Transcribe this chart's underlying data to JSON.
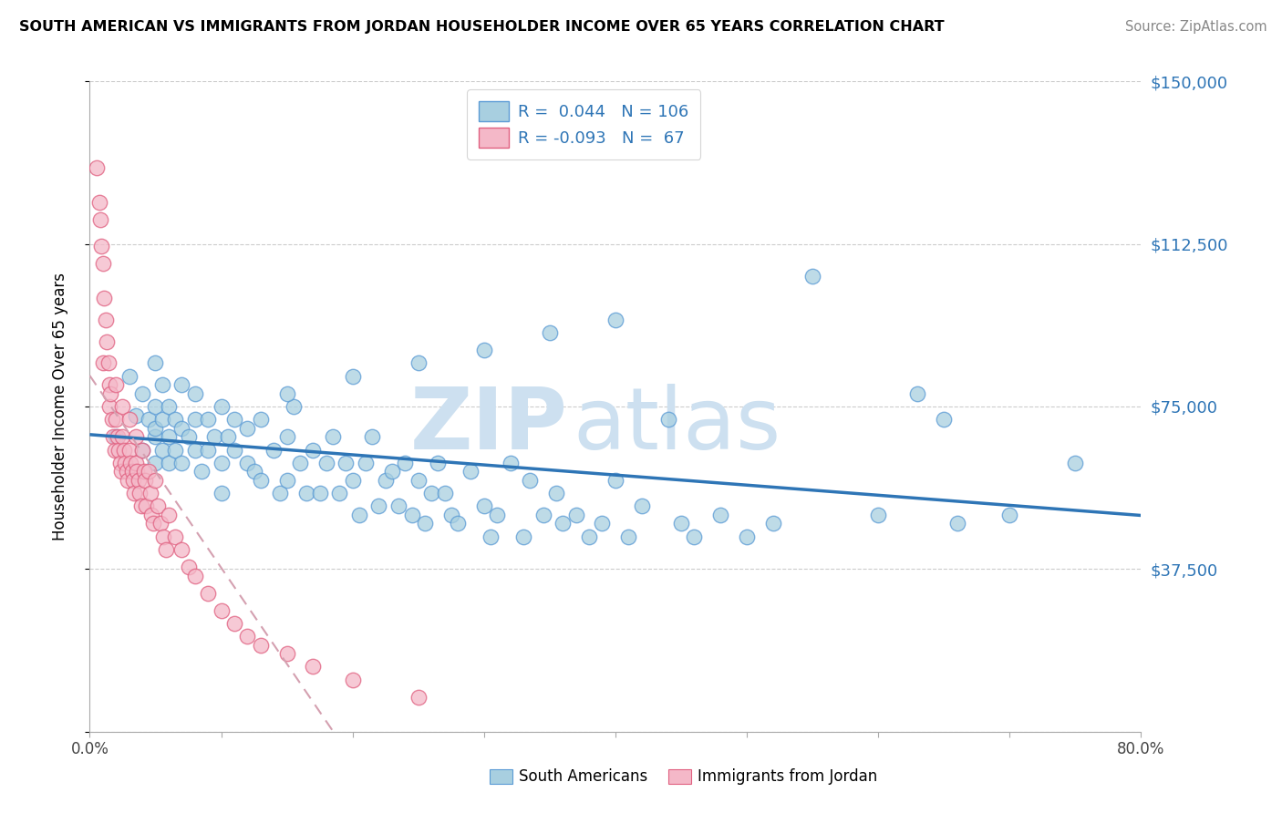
{
  "title": "SOUTH AMERICAN VS IMMIGRANTS FROM JORDAN HOUSEHOLDER INCOME OVER 65 YEARS CORRELATION CHART",
  "source": "Source: ZipAtlas.com",
  "ylabel": "Householder Income Over 65 years",
  "xlim": [
    0.0,
    0.8
  ],
  "ylim": [
    0,
    150000
  ],
  "yticks": [
    0,
    37500,
    75000,
    112500,
    150000
  ],
  "ytick_labels": [
    "",
    "$37,500",
    "$75,000",
    "$112,500",
    "$150,000"
  ],
  "xticks": [
    0.0,
    0.1,
    0.2,
    0.3,
    0.4,
    0.5,
    0.6,
    0.7,
    0.8
  ],
  "xtick_labels": [
    "0.0%",
    "",
    "",
    "",
    "",
    "",
    "",
    "",
    "80.0%"
  ],
  "blue_R": 0.044,
  "blue_N": 106,
  "pink_R": -0.093,
  "pink_N": 67,
  "blue_color": "#a8cfe0",
  "pink_color": "#f4b8c8",
  "blue_edge_color": "#5b9bd5",
  "pink_edge_color": "#e06080",
  "blue_line_color": "#2e75b6",
  "pink_line_color": "#d4a0b0",
  "watermark_color": "#cde0f0",
  "legend_label_blue": "South Americans",
  "legend_label_pink": "Immigrants from Jordan",
  "blue_scatter_x": [
    0.02,
    0.03,
    0.035,
    0.04,
    0.04,
    0.045,
    0.05,
    0.05,
    0.05,
    0.05,
    0.05,
    0.055,
    0.055,
    0.055,
    0.06,
    0.06,
    0.06,
    0.065,
    0.065,
    0.07,
    0.07,
    0.07,
    0.075,
    0.08,
    0.08,
    0.08,
    0.085,
    0.09,
    0.09,
    0.095,
    0.1,
    0.1,
    0.1,
    0.105,
    0.11,
    0.11,
    0.12,
    0.12,
    0.125,
    0.13,
    0.13,
    0.14,
    0.145,
    0.15,
    0.15,
    0.155,
    0.16,
    0.165,
    0.17,
    0.175,
    0.18,
    0.185,
    0.19,
    0.195,
    0.2,
    0.205,
    0.21,
    0.215,
    0.22,
    0.225,
    0.23,
    0.235,
    0.24,
    0.245,
    0.25,
    0.255,
    0.26,
    0.265,
    0.27,
    0.275,
    0.28,
    0.29,
    0.3,
    0.305,
    0.31,
    0.32,
    0.33,
    0.335,
    0.345,
    0.355,
    0.36,
    0.37,
    0.38,
    0.39,
    0.4,
    0.41,
    0.42,
    0.44,
    0.45,
    0.46,
    0.48,
    0.5,
    0.52,
    0.55,
    0.6,
    0.63,
    0.65,
    0.66,
    0.7,
    0.75,
    0.4,
    0.35,
    0.3,
    0.25,
    0.2,
    0.15
  ],
  "blue_scatter_y": [
    68000,
    82000,
    73000,
    78000,
    65000,
    72000,
    85000,
    75000,
    68000,
    62000,
    70000,
    80000,
    72000,
    65000,
    75000,
    68000,
    62000,
    72000,
    65000,
    80000,
    70000,
    62000,
    68000,
    72000,
    65000,
    78000,
    60000,
    72000,
    65000,
    68000,
    75000,
    62000,
    55000,
    68000,
    65000,
    72000,
    62000,
    70000,
    60000,
    72000,
    58000,
    65000,
    55000,
    68000,
    58000,
    75000,
    62000,
    55000,
    65000,
    55000,
    62000,
    68000,
    55000,
    62000,
    58000,
    50000,
    62000,
    68000,
    52000,
    58000,
    60000,
    52000,
    62000,
    50000,
    58000,
    48000,
    55000,
    62000,
    55000,
    50000,
    48000,
    60000,
    52000,
    45000,
    50000,
    62000,
    45000,
    58000,
    50000,
    55000,
    48000,
    50000,
    45000,
    48000,
    58000,
    45000,
    52000,
    72000,
    48000,
    45000,
    50000,
    45000,
    48000,
    105000,
    50000,
    78000,
    72000,
    48000,
    50000,
    62000,
    95000,
    92000,
    88000,
    85000,
    82000,
    78000
  ],
  "pink_scatter_x": [
    0.005,
    0.007,
    0.008,
    0.009,
    0.01,
    0.01,
    0.011,
    0.012,
    0.013,
    0.014,
    0.015,
    0.015,
    0.016,
    0.017,
    0.018,
    0.019,
    0.02,
    0.02,
    0.021,
    0.022,
    0.023,
    0.024,
    0.025,
    0.025,
    0.026,
    0.027,
    0.028,
    0.029,
    0.03,
    0.03,
    0.031,
    0.032,
    0.033,
    0.034,
    0.035,
    0.035,
    0.036,
    0.037,
    0.038,
    0.039,
    0.04,
    0.041,
    0.042,
    0.043,
    0.045,
    0.046,
    0.047,
    0.048,
    0.05,
    0.052,
    0.054,
    0.056,
    0.058,
    0.06,
    0.065,
    0.07,
    0.075,
    0.08,
    0.09,
    0.1,
    0.11,
    0.12,
    0.13,
    0.15,
    0.17,
    0.2,
    0.25
  ],
  "pink_scatter_y": [
    130000,
    122000,
    118000,
    112000,
    85000,
    108000,
    100000,
    95000,
    90000,
    85000,
    80000,
    75000,
    78000,
    72000,
    68000,
    65000,
    80000,
    72000,
    68000,
    65000,
    62000,
    60000,
    75000,
    68000,
    65000,
    62000,
    60000,
    58000,
    72000,
    65000,
    62000,
    60000,
    58000,
    55000,
    68000,
    62000,
    60000,
    58000,
    55000,
    52000,
    65000,
    60000,
    58000,
    52000,
    60000,
    55000,
    50000,
    48000,
    58000,
    52000,
    48000,
    45000,
    42000,
    50000,
    45000,
    42000,
    38000,
    36000,
    32000,
    28000,
    25000,
    22000,
    20000,
    18000,
    15000,
    12000,
    8000
  ]
}
